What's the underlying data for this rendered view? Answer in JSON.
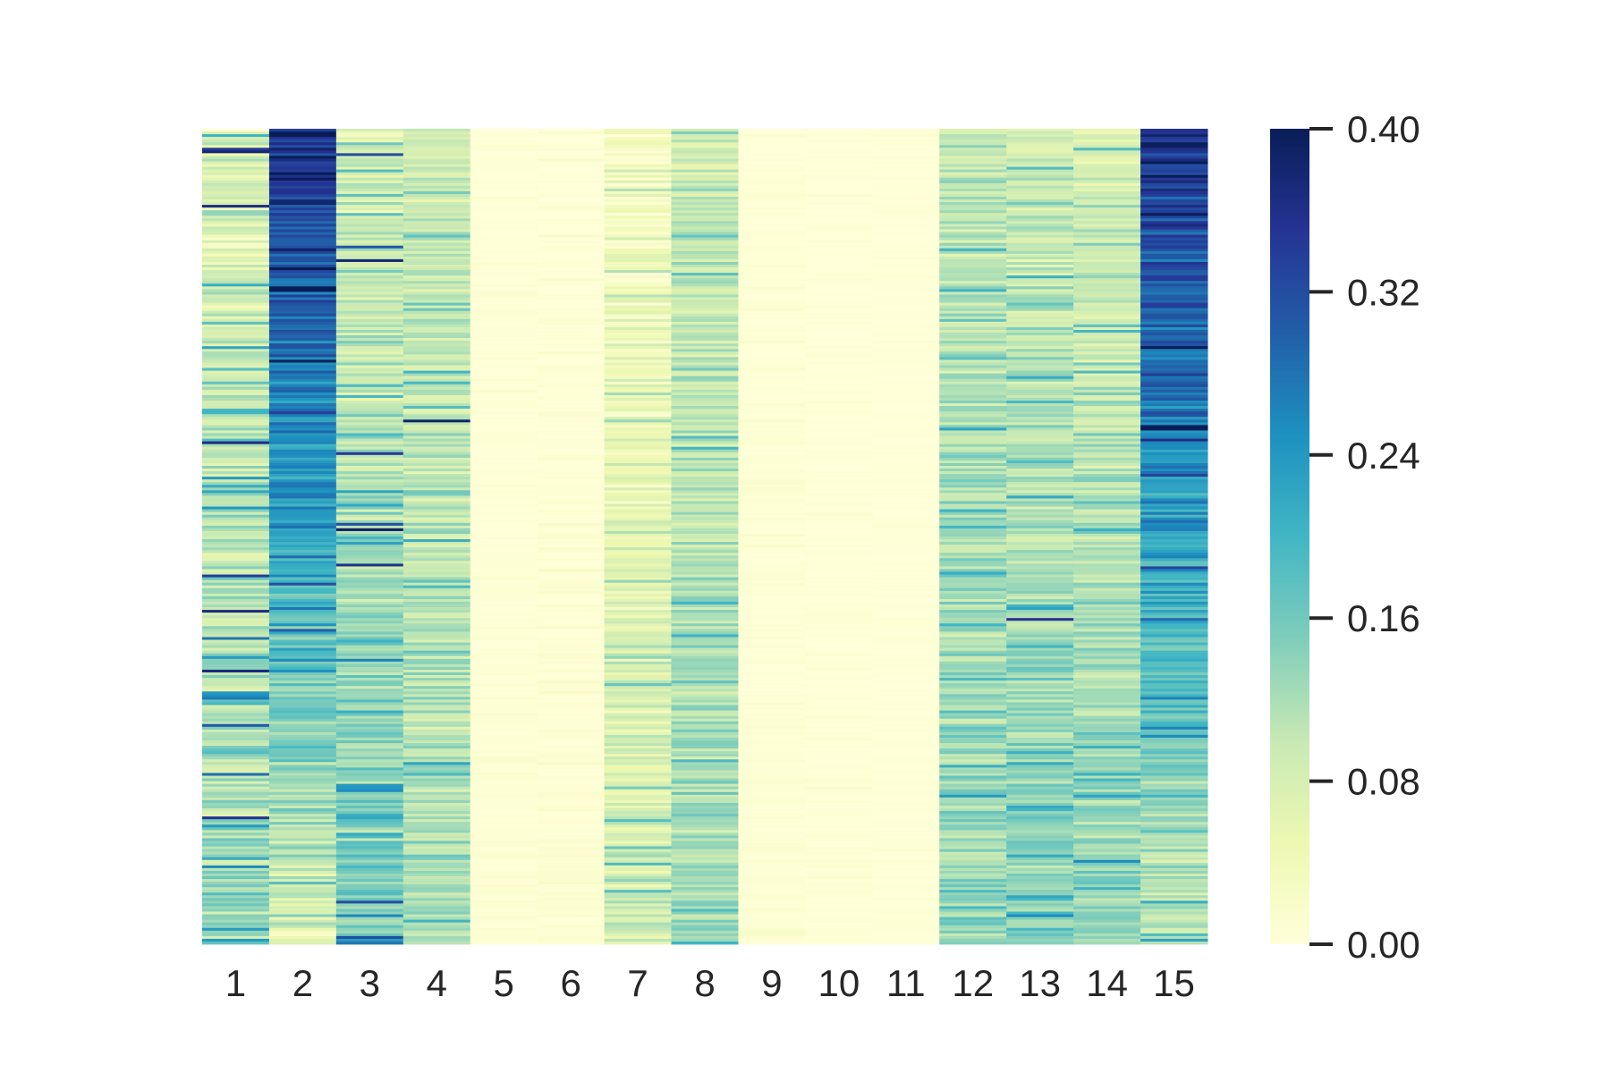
{
  "chart_data": {
    "type": "heatmap",
    "title": "",
    "xlabel": "",
    "ylabel": "",
    "x_tick_labels": [
      "1",
      "2",
      "3",
      "4",
      "5",
      "6",
      "7",
      "8",
      "9",
      "10",
      "11",
      "12",
      "13",
      "14",
      "15"
    ],
    "y_tick_labels": [],
    "colormap": "YlGnBu",
    "colormap_stops": [
      "#ffffd9",
      "#edf8b1",
      "#c7e9b4",
      "#7fcdbb",
      "#41b6c4",
      "#1d91c0",
      "#225ea8",
      "#253494",
      "#081d58"
    ],
    "value_range": [
      0.0,
      0.4
    ],
    "colorbar": {
      "position": "right",
      "ticks": [
        0.0,
        0.08,
        0.16,
        0.24,
        0.32,
        0.4
      ],
      "tick_labels": [
        "0.00",
        "0.08",
        "0.16",
        "0.24",
        "0.32",
        "0.40"
      ]
    },
    "column_profiles": [
      {
        "column": "1",
        "top_mean": 0.07,
        "bottom_mean": 0.14,
        "spread": 0.07,
        "dark_streak_prob": 0.04
      },
      {
        "column": "2",
        "top_mean": 0.36,
        "bottom_mean": 0.07,
        "spread": 0.06,
        "dark_streak_prob": 0.0
      },
      {
        "column": "3",
        "top_mean": 0.08,
        "bottom_mean": 0.16,
        "spread": 0.06,
        "dark_streak_prob": 0.01
      },
      {
        "column": "4",
        "top_mean": 0.09,
        "bottom_mean": 0.12,
        "spread": 0.05,
        "dark_streak_prob": 0.005
      },
      {
        "column": "5",
        "top_mean": 0.002,
        "bottom_mean": 0.006,
        "spread": 0.006,
        "dark_streak_prob": 0.0
      },
      {
        "column": "6",
        "top_mean": 0.002,
        "bottom_mean": 0.008,
        "spread": 0.008,
        "dark_streak_prob": 0.0
      },
      {
        "column": "7",
        "top_mean": 0.03,
        "bottom_mean": 0.09,
        "spread": 0.05,
        "dark_streak_prob": 0.0
      },
      {
        "column": "8",
        "top_mean": 0.09,
        "bottom_mean": 0.13,
        "spread": 0.05,
        "dark_streak_prob": 0.0
      },
      {
        "column": "9",
        "top_mean": 0.002,
        "bottom_mean": 0.006,
        "spread": 0.008,
        "dark_streak_prob": 0.0
      },
      {
        "column": "10",
        "top_mean": 0.001,
        "bottom_mean": 0.004,
        "spread": 0.005,
        "dark_streak_prob": 0.0
      },
      {
        "column": "11",
        "top_mean": 0.001,
        "bottom_mean": 0.003,
        "spread": 0.004,
        "dark_streak_prob": 0.0
      },
      {
        "column": "12",
        "top_mean": 0.1,
        "bottom_mean": 0.14,
        "spread": 0.05,
        "dark_streak_prob": 0.0
      },
      {
        "column": "13",
        "top_mean": 0.09,
        "bottom_mean": 0.15,
        "spread": 0.05,
        "dark_streak_prob": 0.003
      },
      {
        "column": "14",
        "top_mean": 0.08,
        "bottom_mean": 0.14,
        "spread": 0.05,
        "dark_streak_prob": 0.0
      },
      {
        "column": "15",
        "top_mean": 0.35,
        "bottom_mean": 0.1,
        "spread": 0.06,
        "dark_streak_prob": 0.0
      }
    ]
  }
}
